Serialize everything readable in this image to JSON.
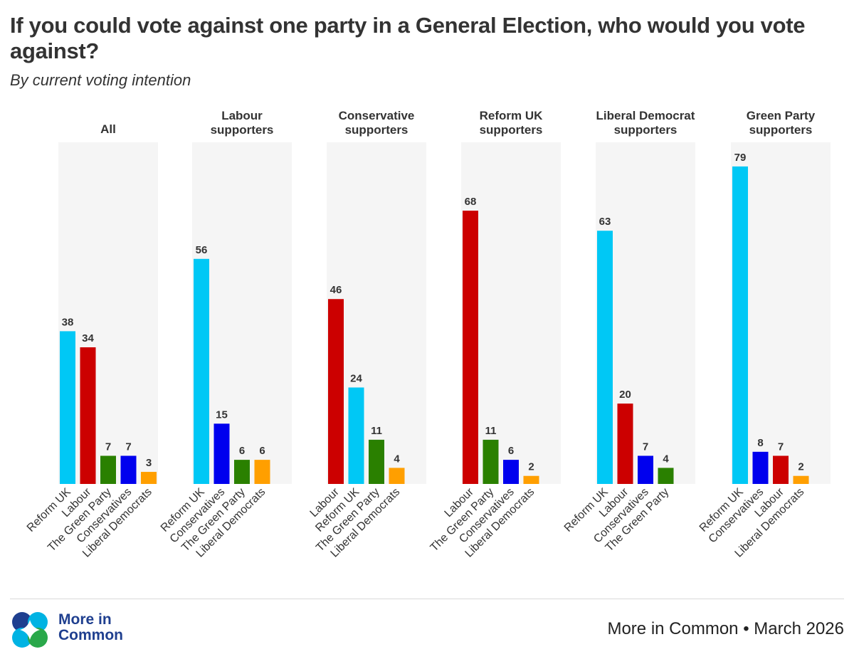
{
  "title": "If you could vote against one party in a General Election, who would you vote against?",
  "subtitle": "By current voting intention",
  "colors": {
    "Reform UK": "#00c8f5",
    "Labour": "#cc0000",
    "The Green Party": "#2a8000",
    "Conservatives": "#0000ee",
    "Liberal Democrats": "#ff9f00",
    "panel_bg": "#f5f5f5"
  },
  "chart_data": {
    "type": "bar",
    "ylim": [
      0,
      85
    ],
    "panels": [
      {
        "title": [
          "All"
        ],
        "categories": [
          "Reform UK",
          "Labour",
          "The Green Party",
          "Conservatives",
          "Liberal Democrats"
        ],
        "values": [
          38,
          34,
          7,
          7,
          3
        ]
      },
      {
        "title": [
          "Labour",
          "supporters"
        ],
        "categories": [
          "Reform UK",
          "Conservatives",
          "The Green Party",
          "Liberal Democrats"
        ],
        "values": [
          56,
          15,
          6,
          6
        ]
      },
      {
        "title": [
          "Conservative",
          "supporters"
        ],
        "categories": [
          "Labour",
          "Reform UK",
          "The Green Party",
          "Liberal Democrats"
        ],
        "values": [
          46,
          24,
          11,
          4
        ]
      },
      {
        "title": [
          "Reform UK",
          "supporters"
        ],
        "categories": [
          "Labour",
          "The Green Party",
          "Conservatives",
          "Liberal Democrats"
        ],
        "values": [
          68,
          11,
          6,
          2
        ]
      },
      {
        "title": [
          "Liberal Democrat",
          "supporters"
        ],
        "categories": [
          "Reform UK",
          "Labour",
          "Conservatives",
          "The Green Party"
        ],
        "values": [
          63,
          20,
          7,
          4
        ]
      },
      {
        "title": [
          "Green Party",
          "supporters"
        ],
        "categories": [
          "Reform UK",
          "Conservatives",
          "Labour",
          "Liberal Democrats"
        ],
        "values": [
          79,
          8,
          7,
          2
        ]
      }
    ]
  },
  "footer": {
    "logo_line1": "More in",
    "logo_line2": "Common",
    "source": "More in Common • March 2026"
  }
}
